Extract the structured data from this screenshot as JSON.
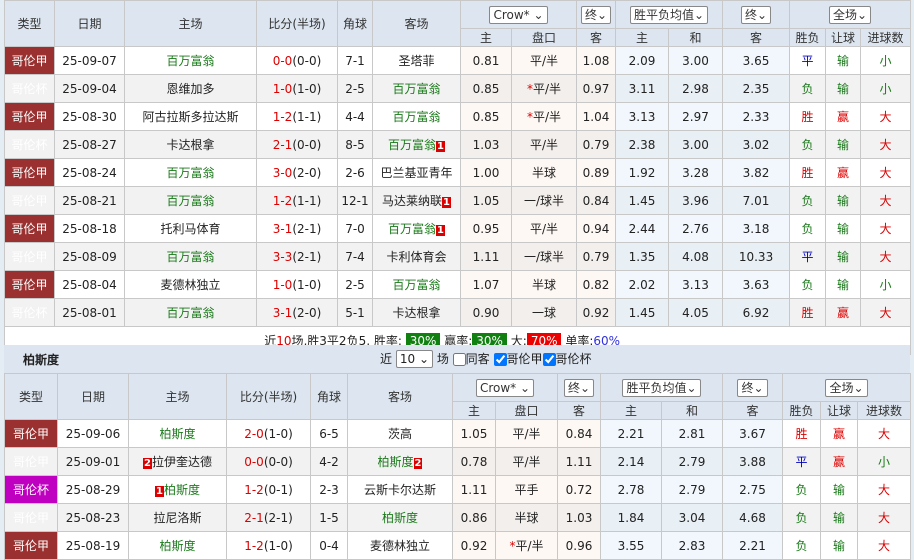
{
  "headers": {
    "type": "类型",
    "date": "日期",
    "home": "主场",
    "score": "比分(半场)",
    "corner": "角球",
    "away": "客场",
    "odds_company": "Crow*",
    "odds_stage": "终",
    "avg_type": "胜平负均值",
    "avg_stage": "终",
    "scope": "全场",
    "home_odds": "主",
    "handicap": "盘口",
    "away_odds": "客",
    "avg_home": "主",
    "avg_draw": "和",
    "avg_away": "客",
    "result": "胜负",
    "ah_result": "让球",
    "goals_result": "进球数"
  },
  "colors": {
    "league_a": "#9a3030",
    "league_cup": "#c000c0",
    "win": "#dd0000",
    "lose": "#1a7a1a",
    "draw": "#0000c0"
  },
  "table1": {
    "rows": [
      [
        "哥伦甲",
        "25-09-07",
        "百万富翁",
        "0-0",
        "(0-0)",
        "7-1",
        "圣塔菲",
        "0.81",
        "平/半",
        "1.08",
        "2.09",
        "3.00",
        "3.65",
        "平",
        "输",
        "小",
        "h",
        "",
        ""
      ],
      [
        "哥伦杯",
        "25-09-04",
        "恩维加多",
        "1-0",
        "(1-0)",
        "2-5",
        "百万富翁",
        "0.85",
        "*平/半",
        "0.97",
        "3.11",
        "2.98",
        "2.35",
        "负",
        "输",
        "小",
        "a",
        "",
        ""
      ],
      [
        "哥伦甲",
        "25-08-30",
        "阿古拉斯多拉达斯",
        "1-2",
        "(1-1)",
        "4-4",
        "百万富翁",
        "0.85",
        "*平/半",
        "1.04",
        "3.13",
        "2.97",
        "2.33",
        "胜",
        "赢",
        "大",
        "a",
        "",
        ""
      ],
      [
        "哥伦杯",
        "25-08-27",
        "卡达根拿",
        "2-1",
        "(0-0)",
        "8-5",
        "百万富翁",
        "1.03",
        "平/半",
        "0.79",
        "2.38",
        "3.00",
        "3.02",
        "负",
        "输",
        "大",
        "a",
        "",
        "1"
      ],
      [
        "哥伦甲",
        "25-08-24",
        "百万富翁",
        "3-0",
        "(2-0)",
        "2-6",
        "巴兰基亚青年",
        "1.00",
        "半球",
        "0.89",
        "1.92",
        "3.28",
        "3.82",
        "胜",
        "赢",
        "大",
        "h",
        "",
        ""
      ],
      [
        "哥伦甲",
        "25-08-21",
        "百万富翁",
        "1-2",
        "(1-1)",
        "12-1",
        "马达莱纳联",
        "1.05",
        "一/球半",
        "0.84",
        "1.45",
        "3.96",
        "7.01",
        "负",
        "输",
        "大",
        "h",
        "",
        "1"
      ],
      [
        "哥伦甲",
        "25-08-18",
        "托利马体育",
        "3-1",
        "(2-1)",
        "7-0",
        "百万富翁",
        "0.95",
        "平/半",
        "0.94",
        "2.44",
        "2.76",
        "3.18",
        "负",
        "输",
        "大",
        "a",
        "",
        "1"
      ],
      [
        "哥伦甲",
        "25-08-09",
        "百万富翁",
        "3-3",
        "(2-1)",
        "7-4",
        "卡利体育会",
        "1.11",
        "一/球半",
        "0.79",
        "1.35",
        "4.08",
        "10.33",
        "平",
        "输",
        "大",
        "h",
        "",
        ""
      ],
      [
        "哥伦甲",
        "25-08-04",
        "麦德林独立",
        "1-0",
        "(1-0)",
        "2-5",
        "百万富翁",
        "1.07",
        "半球",
        "0.82",
        "2.02",
        "3.13",
        "3.63",
        "负",
        "输",
        "小",
        "a",
        "",
        ""
      ],
      [
        "哥伦杯",
        "25-08-01",
        "百万富翁",
        "3-1",
        "(2-0)",
        "5-1",
        "卡达根拿",
        "0.90",
        "一球",
        "0.92",
        "1.45",
        "4.05",
        "6.92",
        "胜",
        "赢",
        "大",
        "h",
        "",
        ""
      ]
    ],
    "summary": {
      "p1": "近",
      "n": "10",
      "p2": "场,胜3平2负5, 胜率:",
      "win_rate": "30%",
      "p3": "赢率:",
      "ah_rate": "30%",
      "p4": "大:",
      "big_rate": "70%",
      "p5": "单率:",
      "odd_rate": "60%"
    }
  },
  "section2": {
    "team": "柏斯度",
    "recent_label": "近",
    "recent_value": "10",
    "recent_unit": "场",
    "same_label": "同客",
    "filter1": "哥伦甲",
    "filter2": "哥伦杯"
  },
  "table2": {
    "rows": [
      [
        "哥伦甲",
        "25-09-06",
        "柏斯度",
        "2-0",
        "(1-0)",
        "6-5",
        "茨高",
        "1.05",
        "平/半",
        "0.84",
        "2.21",
        "2.81",
        "3.67",
        "胜",
        "赢",
        "大",
        "h",
        "",
        ""
      ],
      [
        "哥伦甲",
        "25-09-01",
        "拉伊奎达德",
        "0-0",
        "(0-0)",
        "4-2",
        "柏斯度",
        "0.78",
        "平/半",
        "1.11",
        "2.14",
        "2.79",
        "3.88",
        "平",
        "赢",
        "小",
        "a",
        "2",
        "2"
      ],
      [
        "哥伦杯",
        "25-08-29",
        "柏斯度",
        "1-2",
        "(0-1)",
        "2-3",
        "云斯卡尔达斯",
        "1.11",
        "平手",
        "0.72",
        "2.78",
        "2.79",
        "2.75",
        "负",
        "输",
        "大",
        "h",
        "1",
        ""
      ],
      [
        "哥伦甲",
        "25-08-23",
        "拉尼洛斯",
        "2-1",
        "(2-1)",
        "1-5",
        "柏斯度",
        "0.86",
        "半球",
        "1.03",
        "1.84",
        "3.04",
        "4.68",
        "负",
        "输",
        "大",
        "a",
        "",
        ""
      ],
      [
        "哥伦甲",
        "25-08-19",
        "柏斯度",
        "1-2",
        "(1-0)",
        "0-4",
        "麦德林独立",
        "0.92",
        "*平/半",
        "0.96",
        "3.55",
        "2.83",
        "2.21",
        "负",
        "输",
        "大",
        "h",
        "",
        ""
      ]
    ]
  }
}
